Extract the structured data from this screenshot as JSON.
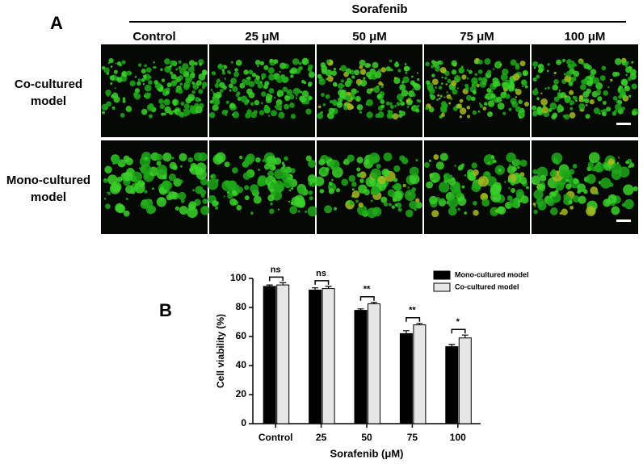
{
  "panel_a": {
    "label": "A",
    "treatment": "Sorafenib",
    "columns": [
      "Control",
      "25 μM",
      "50 μM",
      "75 μM",
      "100 μM"
    ],
    "rows": [
      [
        "Co-cultured",
        "model"
      ],
      [
        "Mono-cultured",
        "model"
      ]
    ]
  },
  "chart_data": {
    "type": "bar",
    "panel_label": "B",
    "categories": [
      "Control",
      "25",
      "50",
      "75",
      "100"
    ],
    "series": [
      {
        "name": "Mono-cultured model",
        "color": "#000000",
        "values": [
          94.5,
          92,
          78,
          62,
          53
        ],
        "errors": [
          1,
          1.5,
          1,
          2,
          1.5
        ]
      },
      {
        "name": "Co-cultured model",
        "color": "#e6e6e6",
        "values": [
          95.5,
          93,
          82.5,
          68,
          59
        ],
        "errors": [
          1.5,
          1.5,
          1,
          1,
          2
        ]
      }
    ],
    "annotations": [
      "ns",
      "ns",
      "**",
      "**",
      "*"
    ],
    "x_label": "Sorafenib (μM)",
    "y_label": "Cell viability (%)",
    "ylim": [
      0,
      100
    ],
    "yticks": [
      0,
      20,
      40,
      60,
      80,
      100
    ],
    "legend": "upper right"
  }
}
